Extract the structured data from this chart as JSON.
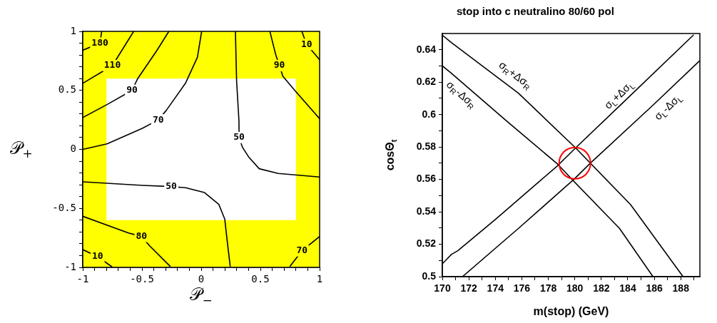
{
  "chart_data": [
    {
      "type": "line",
      "xlabel": "𝒫$_{−}$",
      "ylabel": "𝒫$_{+}$",
      "legend": false,
      "marker": "none",
      "xlim": [
        -1,
        1
      ],
      "ylim": [
        -1,
        1
      ],
      "xticks": [
        -1,
        {
          "value": -0.9,
          "label": null
        },
        {
          "value": -0.8,
          "label": null
        },
        {
          "value": -0.7,
          "label": null
        },
        {
          "value": -0.6,
          "label": null
        },
        -0.5,
        {
          "value": -0.4,
          "label": null
        },
        {
          "value": -0.3,
          "label": null
        },
        {
          "value": -0.2,
          "label": null
        },
        {
          "value": -0.1,
          "label": null
        },
        0,
        {
          "value": 0.1,
          "label": null
        },
        {
          "value": 0.2,
          "label": null
        },
        {
          "value": 0.3,
          "label": null
        },
        {
          "value": 0.4,
          "label": null
        },
        0.5,
        {
          "value": 0.6,
          "label": null
        },
        {
          "value": 0.7,
          "label": null
        },
        {
          "value": 0.8,
          "label": null
        },
        {
          "value": 0.9,
          "label": null
        },
        1
      ],
      "yticks": [
        -1,
        {
          "value": -0.9,
          "label": null
        },
        {
          "value": -0.8,
          "label": null
        },
        {
          "value": -0.7,
          "label": null
        },
        {
          "value": -0.6,
          "label": null
        },
        -0.5,
        {
          "value": -0.4,
          "label": null
        },
        {
          "value": -0.3,
          "label": null
        },
        {
          "value": -0.2,
          "label": null
        },
        {
          "value": -0.1,
          "label": null
        },
        0,
        {
          "value": 0.1,
          "label": null
        },
        {
          "value": 0.2,
          "label": null
        },
        {
          "value": 0.3,
          "label": null
        },
        {
          "value": 0.4,
          "label": null
        },
        0.5,
        {
          "value": 0.6,
          "label": null
        },
        {
          "value": 0.7,
          "label": null
        },
        {
          "value": 0.8,
          "label": null
        },
        {
          "value": 0.9,
          "label": null
        },
        1
      ],
      "bands": [
        {
          "axis": "y",
          "from": 0.6,
          "to": 1,
          "color": "#ffff00"
        },
        {
          "axis": "y",
          "from": -1,
          "to": -0.6,
          "color": "#ffff00"
        },
        {
          "axis": "x",
          "from": -1,
          "to": -0.8,
          "color": "#ffff00"
        },
        {
          "axis": "x",
          "from": 0.8,
          "to": 1,
          "color": "#ffff00"
        }
      ],
      "series": [
        {
          "color": "#000000",
          "x": [
            -1,
            -0.855,
            -0.84
          ],
          "values": [
            0.84,
            0.9,
            1.0
          ]
        },
        {
          "color": "#000000",
          "x": [
            -1,
            -0.75,
            -0.57
          ],
          "values": [
            0.56,
            0.71,
            1.0
          ]
        },
        {
          "color": "#000000",
          "x": [
            -1,
            -0.795,
            -0.584,
            -0.536,
            -0.373,
            -0.273
          ],
          "values": [
            0.27,
            0.38,
            0.5,
            0.6,
            0.84,
            1.0
          ]
        },
        {
          "color": "#000000",
          "x": [
            -1,
            -0.795,
            -0.494,
            -0.363,
            -0.295,
            -0.133,
            -0.032,
            0.004
          ],
          "values": [
            0.0,
            0.047,
            0.18,
            0.25,
            0.33,
            0.56,
            0.78,
            1.0
          ]
        },
        {
          "color": "#000000",
          "x": [
            0.289,
            0.299,
            0.319,
            0.32,
            0.349,
            0.4,
            0.49,
            0.65,
            1.0
          ],
          "values": [
            1.0,
            0.58,
            0.24,
            0.1,
            0.017,
            -0.063,
            -0.164,
            -0.204,
            -0.234
          ]
        },
        {
          "color": "#000000",
          "x": [
            0.58,
            0.63,
            0.66,
            0.69,
            0.79,
            1.0
          ],
          "values": [
            1.0,
            0.8,
            0.71,
            0.62,
            0.5,
            0.26
          ]
        },
        {
          "color": "#000000",
          "x": [
            0.85,
            0.89,
            1.0
          ],
          "values": [
            1.0,
            0.89,
            0.76
          ]
        },
        {
          "color": "#000000",
          "x": [
            -1,
            -0.494,
            -0.253,
            -0.133,
            0.028,
            0.149,
            0.199,
            0.219,
            0.245
          ],
          "values": [
            -0.275,
            -0.305,
            -0.315,
            -0.325,
            -0.366,
            -0.466,
            -0.591,
            -0.77,
            -0.99
          ]
        },
        {
          "color": "#000000",
          "x": [
            -1,
            -0.614,
            -0.504,
            -0.434,
            -0.263
          ],
          "values": [
            -0.567,
            -0.708,
            -0.738,
            -0.819,
            -0.99
          ]
        },
        {
          "color": "#000000",
          "x": [
            -1,
            -0.875,
            -0.755
          ],
          "values": [
            -0.849,
            -0.909,
            -0.994
          ]
        },
        {
          "color": "#000000",
          "x": [
            0.751,
            0.851,
            1.0
          ],
          "values": [
            -0.99,
            -0.859,
            -0.738
          ]
        }
      ],
      "annotations": [
        {
          "text": "180",
          "x": -0.855,
          "y": 0.9
        },
        {
          "text": "110",
          "x": -0.75,
          "y": 0.71
        },
        {
          "text": "90",
          "x": -0.584,
          "y": 0.5
        },
        {
          "text": "70",
          "x": -0.363,
          "y": 0.25
        },
        {
          "text": "50",
          "x": 0.32,
          "y": 0.1
        },
        {
          "text": "90",
          "x": 0.66,
          "y": 0.71
        },
        {
          "text": "10",
          "x": 0.89,
          "y": 0.89
        },
        {
          "text": "50",
          "x": -0.253,
          "y": -0.315
        },
        {
          "text": "80",
          "x": -0.504,
          "y": -0.738
        },
        {
          "text": "10",
          "x": -0.875,
          "y": -0.909
        },
        {
          "text": "70",
          "x": 0.851,
          "y": -0.859
        }
      ]
    },
    {
      "type": "line",
      "title": "stop into c neutralino 80/60 pol",
      "xlabel": "m(stop) (GeV)",
      "ylabel": "cosΘ$_{t}$",
      "legend": false,
      "marker": "none",
      "xlim": [
        170,
        189.44
      ],
      "ylim": [
        0.5,
        0.65
      ],
      "xticks": [
        170,
        {
          "value": 171,
          "label": null
        },
        172,
        {
          "value": 173,
          "label": null
        },
        174,
        {
          "value": 175,
          "label": null
        },
        176,
        {
          "value": 177,
          "label": null
        },
        178,
        {
          "value": 179,
          "label": null
        },
        180,
        {
          "value": 181,
          "label": null
        },
        182,
        {
          "value": 183,
          "label": null
        },
        184,
        {
          "value": 185,
          "label": null
        },
        186,
        {
          "value": 187,
          "label": null
        },
        188,
        {
          "value": 189,
          "label": null
        }
      ],
      "yticks": [
        0.5,
        {
          "value": 0.51,
          "label": null
        },
        0.52,
        {
          "value": 0.53,
          "label": null
        },
        0.54,
        {
          "value": 0.55,
          "label": null
        },
        0.56,
        {
          "value": 0.57,
          "label": null
        },
        0.58,
        {
          "value": 0.59,
          "label": null
        },
        0.6,
        {
          "value": 0.61,
          "label": null
        },
        0.62,
        {
          "value": 0.63,
          "label": null
        },
        0.64
      ],
      "series": [
        {
          "name": "σ$_{R}$+Δσ$_{R}$",
          "color": "#000000",
          "x": [
            170,
            170.66,
            175.74,
            180.05,
            184.21,
            188.17
          ],
          "values": [
            0.649,
            0.6446,
            0.6132,
            0.5795,
            0.5444,
            0.5
          ]
        },
        {
          "name": "σ$_{R}$-Δσ$_{R}$",
          "color": "#000000",
          "x": [
            170,
            170.66,
            174.91,
            178.72,
            179.81,
            183.37,
            185.9
          ],
          "values": [
            0.63,
            0.6256,
            0.5956,
            0.5693,
            0.5598,
            0.5298,
            0.5
          ]
        },
        {
          "name": "σ$_{L}$+Δσ$_{L}$",
          "color": "#000000",
          "x": [
            170,
            170.34,
            170.68,
            171.17,
            174.06,
            178.72,
            180.07,
            183.54,
            188.95
          ],
          "values": [
            0.5079,
            0.5108,
            0.5137,
            0.516,
            0.5357,
            0.5686,
            0.5795,
            0.6066,
            0.649
          ]
        },
        {
          "name": "σ$_{L}$-Δσ$_{L}$",
          "color": "#000000",
          "x": [
            171.52,
            175.75,
            179.9,
            181.17,
            185.9,
            189.4
          ],
          "values": [
            0.5,
            0.5298,
            0.5598,
            0.57,
            0.6058,
            0.633
          ]
        },
        {
          "type": "scatter",
          "marker": "circle",
          "color": "#ff0000",
          "x": [
            180
          ],
          "values": [
            0.57
          ]
        }
      ]
    }
  ]
}
